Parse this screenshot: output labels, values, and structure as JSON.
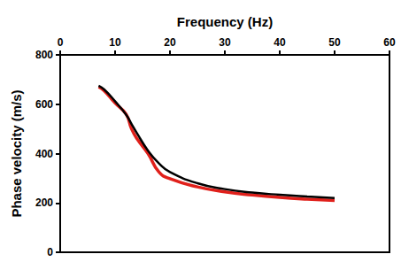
{
  "chart_data": {
    "type": "line",
    "x_label": "Frequency (Hz)",
    "y_label": "Phase velocity (m/s)",
    "x": [
      7,
      8,
      10,
      12,
      13,
      14,
      16,
      18,
      20,
      25,
      30,
      35,
      40,
      45,
      50
    ],
    "series": [
      {
        "color": "#e0201b",
        "values": [
          670,
          655,
          605,
          560,
          500,
          460,
          400,
          325,
          298,
          265,
          245,
          232,
          222,
          215,
          210
        ]
      },
      {
        "color": "#000000",
        "values": [
          675,
          660,
          612,
          558,
          520,
          482,
          412,
          360,
          325,
          280,
          256,
          242,
          233,
          226,
          220
        ]
      }
    ],
    "xlim": [
      0,
      60
    ],
    "xticks": [
      0,
      10,
      20,
      30,
      40,
      50,
      60
    ],
    "ylim": [
      0,
      800
    ],
    "yticks": [
      0,
      200,
      400,
      600,
      800
    ],
    "grid": false
  }
}
